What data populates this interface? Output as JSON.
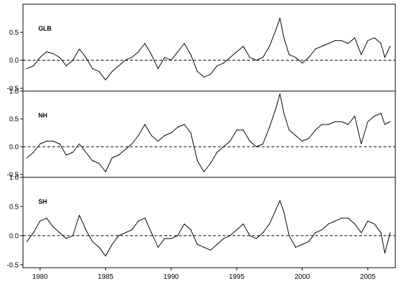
{
  "chart_data": [
    {
      "type": "line",
      "label": "GLB",
      "xlim": [
        1978.7,
        2007.1
      ],
      "ylim": [
        -0.55,
        1.0
      ],
      "yticks": [
        -0.5,
        0.0,
        0.5
      ],
      "ytick_labels": [
        "-0.5",
        "0.0",
        "0.5"
      ],
      "reference_line": 0.0,
      "grid": false,
      "x": [
        1979.0,
        1979.5,
        1980.0,
        1980.5,
        1981.0,
        1981.5,
        1982.0,
        1982.5,
        1983.0,
        1983.5,
        1984.0,
        1984.5,
        1985.0,
        1985.5,
        1986.0,
        1986.5,
        1987.0,
        1987.5,
        1988.0,
        1988.5,
        1989.0,
        1989.5,
        1990.0,
        1990.5,
        1991.0,
        1991.5,
        1992.0,
        1992.5,
        1993.0,
        1993.5,
        1994.0,
        1994.5,
        1995.0,
        1995.5,
        1996.0,
        1996.5,
        1997.0,
        1997.5,
        1998.0,
        1998.3,
        1998.6,
        1999.0,
        1999.5,
        2000.0,
        2000.5,
        2001.0,
        2001.5,
        2002.0,
        2002.5,
        2003.0,
        2003.5,
        2004.0,
        2004.5,
        2005.0,
        2005.5,
        2006.0,
        2006.3,
        2006.7
      ],
      "y": [
        -0.15,
        -0.1,
        0.05,
        0.15,
        0.12,
        0.05,
        -0.1,
        0.0,
        0.2,
        0.05,
        -0.15,
        -0.2,
        -0.35,
        -0.2,
        -0.1,
        0.0,
        0.05,
        0.15,
        0.3,
        0.1,
        -0.15,
        0.05,
        0.0,
        0.15,
        0.3,
        0.1,
        -0.2,
        -0.3,
        -0.25,
        -0.1,
        -0.05,
        0.05,
        0.15,
        0.25,
        0.05,
        0.0,
        0.05,
        0.25,
        0.55,
        0.75,
        0.4,
        0.1,
        0.05,
        -0.05,
        0.05,
        0.2,
        0.25,
        0.3,
        0.35,
        0.35,
        0.3,
        0.4,
        0.1,
        0.35,
        0.4,
        0.3,
        0.05,
        0.25
      ]
    },
    {
      "type": "line",
      "label": "NH",
      "xlim": [
        1978.7,
        2007.1
      ],
      "ylim": [
        -0.55,
        1.0
      ],
      "yticks": [
        -0.5,
        0.0,
        0.5,
        1.0
      ],
      "ytick_labels": [
        "-0.5",
        "0.0",
        "0.5",
        "1.0"
      ],
      "reference_line": 0.0,
      "grid": false,
      "x": [
        1979.0,
        1979.5,
        1980.0,
        1980.5,
        1981.0,
        1981.5,
        1982.0,
        1982.5,
        1983.0,
        1983.5,
        1984.0,
        1984.5,
        1985.0,
        1985.5,
        1986.0,
        1986.5,
        1987.0,
        1987.5,
        1988.0,
        1988.5,
        1989.0,
        1989.5,
        1990.0,
        1990.5,
        1991.0,
        1991.5,
        1992.0,
        1992.5,
        1993.0,
        1993.5,
        1994.0,
        1994.5,
        1995.0,
        1995.5,
        1996.0,
        1996.5,
        1997.0,
        1997.5,
        1998.0,
        1998.3,
        1998.6,
        1999.0,
        1999.5,
        2000.0,
        2000.5,
        2001.0,
        2001.5,
        2002.0,
        2002.5,
        2003.0,
        2003.5,
        2004.0,
        2004.5,
        2005.0,
        2005.5,
        2006.0,
        2006.3,
        2006.7
      ],
      "y": [
        -0.2,
        -0.1,
        0.05,
        0.1,
        0.1,
        0.05,
        -0.15,
        -0.1,
        0.05,
        -0.1,
        -0.25,
        -0.3,
        -0.45,
        -0.2,
        -0.15,
        -0.05,
        0.05,
        0.2,
        0.4,
        0.2,
        0.1,
        0.2,
        0.25,
        0.35,
        0.4,
        0.25,
        -0.25,
        -0.45,
        -0.3,
        -0.1,
        0.0,
        0.1,
        0.3,
        0.3,
        0.1,
        0.0,
        0.05,
        0.35,
        0.7,
        0.95,
        0.6,
        0.3,
        0.2,
        0.1,
        0.15,
        0.3,
        0.4,
        0.4,
        0.45,
        0.45,
        0.4,
        0.55,
        0.05,
        0.45,
        0.55,
        0.6,
        0.4,
        0.45
      ]
    },
    {
      "type": "line",
      "label": "SH",
      "xlim": [
        1978.7,
        2007.1
      ],
      "ylim": [
        -0.55,
        1.0
      ],
      "yticks": [
        -0.5,
        0.0,
        0.5,
        1.0
      ],
      "ytick_labels": [
        "-0.5",
        "0.0",
        "0.5",
        "1.0"
      ],
      "xticks": [
        1980,
        1985,
        1990,
        1995,
        2000,
        2005
      ],
      "xtick_labels": [
        "1980",
        "1985",
        "1990",
        "1995",
        "2000",
        "2005"
      ],
      "reference_line": 0.0,
      "grid": false,
      "x": [
        1979.0,
        1979.5,
        1980.0,
        1980.5,
        1981.0,
        1981.5,
        1982.0,
        1982.5,
        1983.0,
        1983.5,
        1984.0,
        1984.5,
        1985.0,
        1985.5,
        1986.0,
        1986.5,
        1987.0,
        1987.5,
        1988.0,
        1988.5,
        1989.0,
        1989.5,
        1990.0,
        1990.5,
        1991.0,
        1991.5,
        1992.0,
        1992.5,
        1993.0,
        1993.5,
        1994.0,
        1994.5,
        1995.0,
        1995.5,
        1996.0,
        1996.5,
        1997.0,
        1997.5,
        1998.0,
        1998.3,
        1998.6,
        1999.0,
        1999.5,
        2000.0,
        2000.5,
        2001.0,
        2001.5,
        2002.0,
        2002.5,
        2003.0,
        2003.5,
        2004.0,
        2004.5,
        2005.0,
        2005.5,
        2006.0,
        2006.3,
        2006.7
      ],
      "y": [
        -0.1,
        0.05,
        0.25,
        0.3,
        0.15,
        0.05,
        -0.05,
        0.0,
        0.35,
        0.1,
        -0.1,
        -0.2,
        -0.35,
        -0.15,
        0.0,
        0.05,
        0.1,
        0.25,
        0.3,
        0.05,
        -0.2,
        -0.05,
        -0.05,
        0.0,
        0.2,
        0.1,
        -0.15,
        -0.2,
        -0.25,
        -0.15,
        -0.05,
        0.0,
        0.1,
        0.2,
        0.0,
        -0.05,
        0.05,
        0.2,
        0.45,
        0.6,
        0.4,
        0.0,
        -0.2,
        -0.15,
        -0.1,
        0.05,
        0.1,
        0.2,
        0.25,
        0.3,
        0.3,
        0.2,
        0.05,
        0.25,
        0.2,
        0.05,
        -0.3,
        0.05
      ]
    }
  ]
}
